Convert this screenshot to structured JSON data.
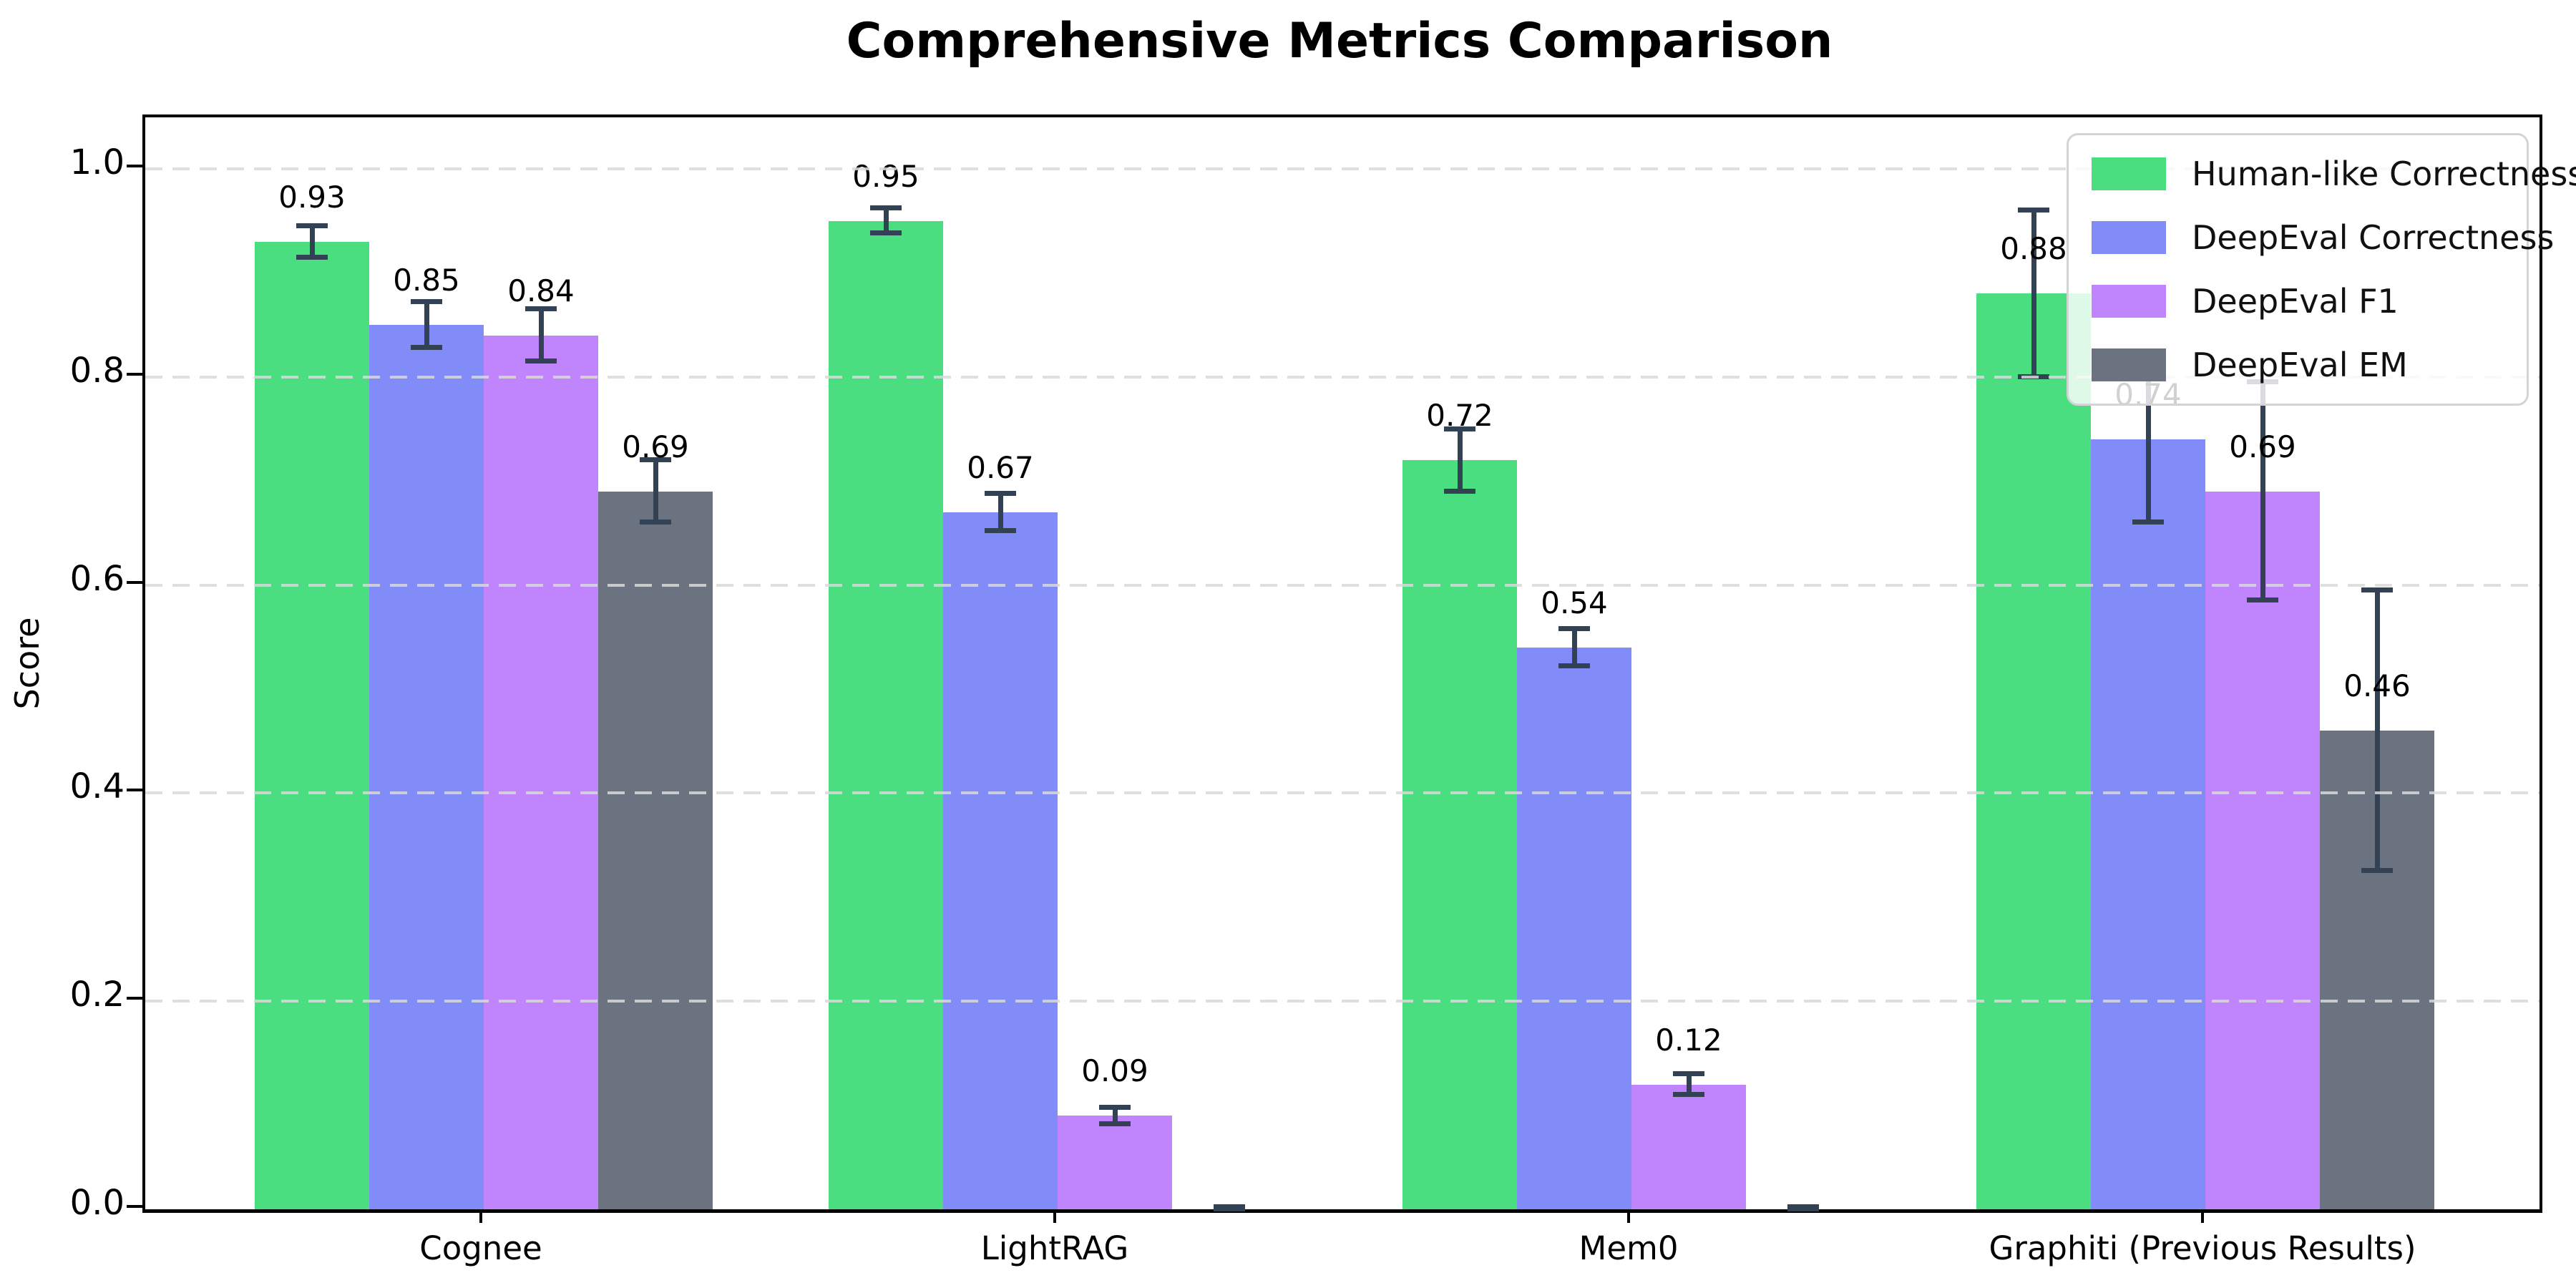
{
  "title": "Comprehensive Metrics Comparison",
  "chart_data": {
    "type": "bar",
    "title": "Comprehensive Metrics Comparison",
    "xlabel": "",
    "ylabel": "Score",
    "categories": [
      "Cognee",
      "LightRAG",
      "Mem0",
      "Graphiti (Previous Results)"
    ],
    "yticks": [
      "0.0",
      "0.2",
      "0.4",
      "0.6",
      "0.8",
      "1.0"
    ],
    "ylim": [
      0,
      1.05
    ],
    "grid": "horizontal-dashed",
    "legend_position": "upper right",
    "error_bar_color": "#334155",
    "series": [
      {
        "name": "Human-like Correctness",
        "color": "#4ade80",
        "values": [
          0.93,
          0.95,
          0.72,
          0.88
        ],
        "errors": [
          0.015,
          0.012,
          0.03,
          0.08
        ],
        "labels": [
          "0.93",
          "0.95",
          "0.72",
          "0.88"
        ]
      },
      {
        "name": "DeepEval Correctness",
        "color": "#818cf8",
        "values": [
          0.85,
          0.67,
          0.54,
          0.74
        ],
        "errors": [
          0.022,
          0.018,
          0.018,
          0.08
        ],
        "labels": [
          "0.85",
          "0.67",
          "0.54",
          "0.74"
        ]
      },
      {
        "name": "DeepEval F1",
        "color": "#c084fc",
        "values": [
          0.84,
          0.09,
          0.12,
          0.69
        ],
        "errors": [
          0.025,
          0.008,
          0.01,
          0.105
        ],
        "labels": [
          "0.84",
          "0.09",
          "0.12",
          "0.69"
        ]
      },
      {
        "name": "DeepEval EM",
        "color": "#6b7280",
        "values": [
          0.69,
          0.0,
          0.0,
          0.46
        ],
        "errors": [
          0.03,
          0.002,
          0.002,
          0.135
        ],
        "labels": [
          "0.69",
          "",
          "",
          "0.46"
        ]
      }
    ]
  }
}
